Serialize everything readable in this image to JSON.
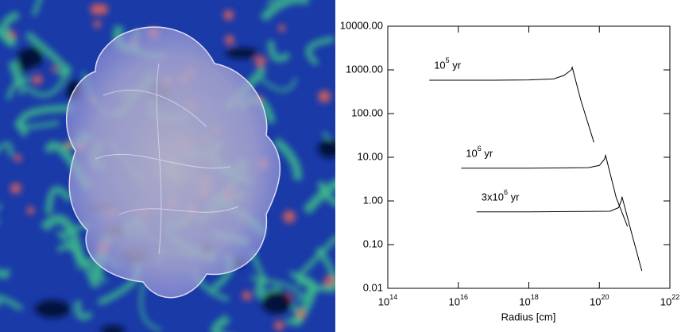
{
  "chart_data": {
    "type": "line",
    "x_label": "Radius [cm]",
    "xscale": "log",
    "yscale": "log",
    "xlim": [
      100000000000000.0,
      1e+22
    ],
    "xticks": [
      {
        "value": 100000000000000.0,
        "label": "10^14"
      },
      {
        "value": 1e+16,
        "label": "10^16"
      },
      {
        "value": 1e+18,
        "label": "10^18"
      },
      {
        "value": 1e+20,
        "label": "10^20"
      },
      {
        "value": 1e+22,
        "label": "10^22"
      }
    ],
    "ylim": [
      0.01,
      10000
    ],
    "yticks": [
      {
        "value": 0.01,
        "label": "0.01"
      },
      {
        "value": 0.1,
        "label": "0.10"
      },
      {
        "value": 1,
        "label": "1.00"
      },
      {
        "value": 10,
        "label": "10.00"
      },
      {
        "value": 100,
        "label": "100.00"
      },
      {
        "value": 1000,
        "label": "1000.00"
      },
      {
        "value": 10000,
        "label": "10000.00"
      }
    ],
    "series": [
      {
        "name": "10^5 yr",
        "color": "#000000",
        "x": [
          1500000000000000.0,
          1e+17,
          1e+18,
          5e+18,
          1e+19,
          1.6e+19,
          1.7e+19,
          3e+19,
          7e+19
        ],
        "values": [
          580,
          580,
          590,
          620,
          750,
          1000,
          1150,
          200,
          22
        ]
      },
      {
        "name": "10^6 yr",
        "color": "#000000",
        "x": [
          1.2e+16,
          1e+18,
          5e+19,
          1e+20,
          1.4e+20,
          1.5e+20,
          3e+20,
          6.3e+20
        ],
        "values": [
          5.6,
          5.6,
          5.8,
          6.5,
          9,
          11,
          1.2,
          0.26
        ]
      },
      {
        "name": "3x10^6 yr",
        "color": "#000000",
        "x": [
          3.3e+16,
          1e+18,
          2e+20,
          3.5e+20,
          4.2e+20,
          4.4e+20,
          8e+20,
          1.6e+21
        ],
        "values": [
          0.56,
          0.56,
          0.58,
          0.7,
          1.0,
          1.25,
          0.2,
          0.025
        ]
      }
    ]
  }
}
